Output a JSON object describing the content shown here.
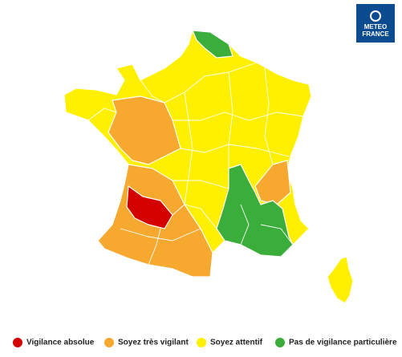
{
  "logo": {
    "line1": "METEO",
    "line2": "FRANCE"
  },
  "legend": [
    {
      "label": "Vigilance absolue",
      "color": "#d40000"
    },
    {
      "label": "Soyez très vigilant",
      "color": "#f7a82e"
    },
    {
      "label": "Soyez attentif",
      "color": "#fff000"
    },
    {
      "label": "Pas de vigilance particulière",
      "color": "#3aad3a"
    }
  ]
}
